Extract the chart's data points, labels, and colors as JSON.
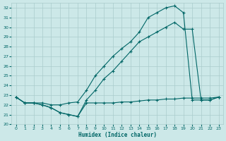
{
  "xlabel": "Humidex (Indice chaleur)",
  "bg_color": "#cce8e8",
  "grid_color": "#aacccc",
  "line_color": "#006666",
  "ylim": [
    20,
    32.5
  ],
  "xlim": [
    -0.5,
    23.5
  ],
  "yticks": [
    20,
    21,
    22,
    23,
    24,
    25,
    26,
    27,
    28,
    29,
    30,
    31,
    32
  ],
  "xticks": [
    0,
    1,
    2,
    3,
    4,
    5,
    6,
    7,
    8,
    9,
    10,
    11,
    12,
    13,
    14,
    15,
    16,
    17,
    18,
    19,
    20,
    21,
    22,
    23
  ],
  "line1": [
    22.8,
    22.2,
    22.2,
    22.0,
    21.7,
    21.2,
    21.0,
    20.8,
    22.2,
    22.2,
    22.2,
    22.2,
    22.3,
    22.3,
    22.4,
    22.5,
    22.5,
    22.6,
    22.6,
    22.7,
    22.7,
    22.7,
    22.7,
    22.8
  ],
  "line2": [
    22.8,
    22.2,
    22.2,
    22.0,
    21.7,
    21.2,
    21.0,
    20.8,
    22.5,
    23.5,
    24.7,
    25.5,
    26.5,
    27.5,
    28.5,
    29.0,
    29.5,
    30.0,
    30.5,
    29.8,
    29.8,
    22.5,
    22.5,
    22.8
  ],
  "line3": [
    22.8,
    22.2,
    22.2,
    22.2,
    22.0,
    22.0,
    22.2,
    22.3,
    23.5,
    25.0,
    26.0,
    27.0,
    27.8,
    28.5,
    29.5,
    31.0,
    31.5,
    32.0,
    32.2,
    31.5,
    22.5,
    22.5,
    22.5,
    22.8
  ]
}
